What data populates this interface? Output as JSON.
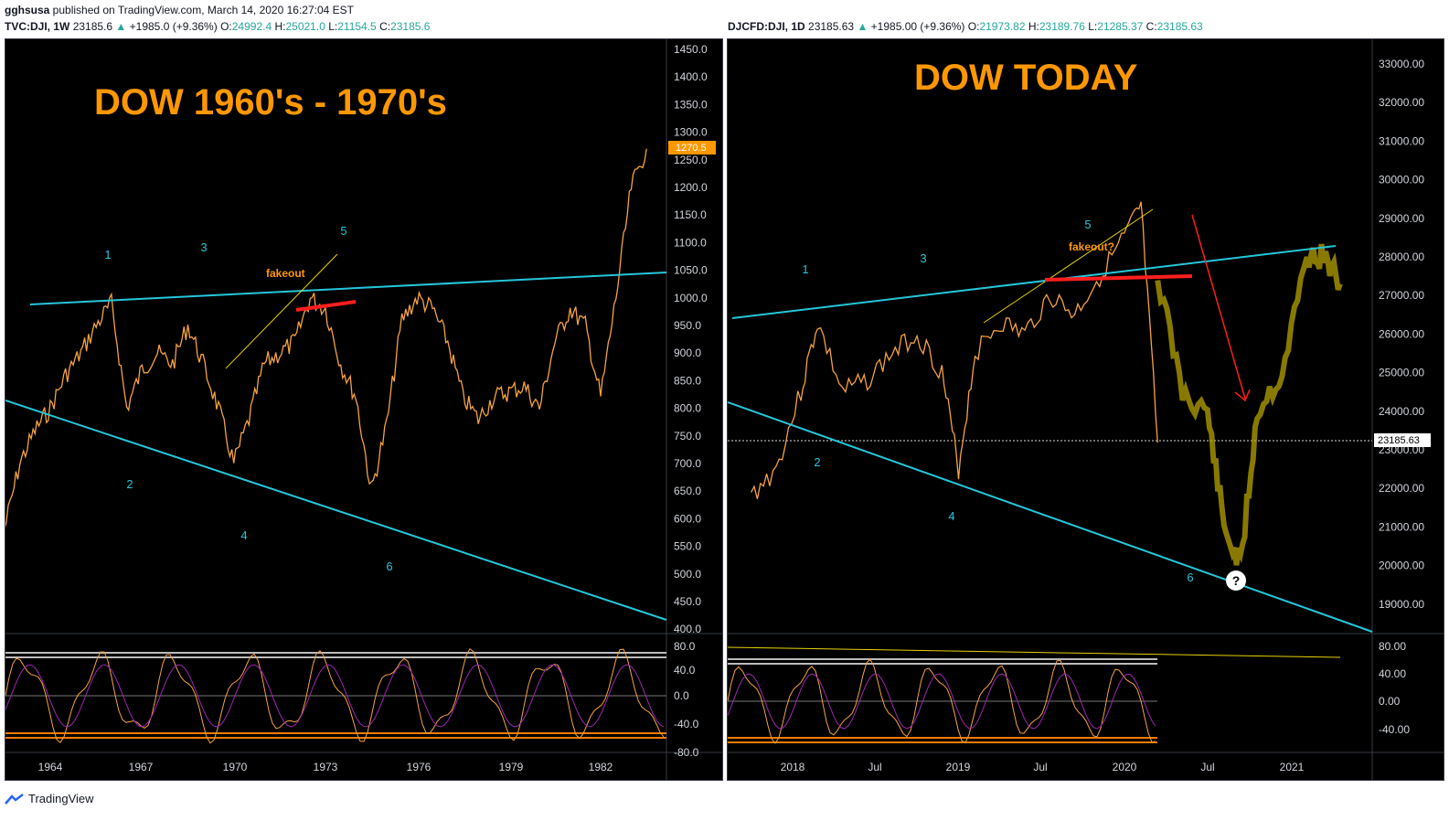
{
  "header": {
    "published_line": {
      "user": "gghsusa",
      "rest": " published on TradingView.com, March 14, 2020 16:27:04 EST"
    },
    "left_quote": {
      "symbol": "TVC:DJI, 1W",
      "price": "23185.6",
      "arrow": "▲",
      "change": "+1985.0 (+9.36%)",
      "o_label": "O:",
      "o": "24992.4",
      "h_label": "H:",
      "h": "25021.0",
      "l_label": "L:",
      "l": "21154.5",
      "c_label": "C:",
      "c": "23185.6"
    },
    "right_quote": {
      "symbol": "DJCFD:DJI, 1D",
      "price": "23185.63",
      "arrow": "▲",
      "change": "+1985.00 (+9.36%)",
      "o_label": "O:",
      "o": "21973.82",
      "h_label": "H:",
      "h": "23189.76",
      "l_label": "L:",
      "l": "21285.37",
      "c_label": "C:",
      "c": "23185.63"
    }
  },
  "colors": {
    "bg": "#000000",
    "price": "#f5a340",
    "trend": "#26c6da",
    "accent": "#ff9800",
    "red": "#ff1e1e",
    "projection": "#b5a300",
    "text_axis": "#d1d4dc",
    "wave": "#26c6da"
  },
  "chart_data": [
    {
      "type": "line",
      "title": "DOW 1960's - 1970's",
      "y_axis_ticks": [
        "1450.0",
        "1400.0",
        "1350.0",
        "1300.0",
        "1250.0",
        "1200.0",
        "1150.0",
        "1100.0",
        "1050.0",
        "1000.0",
        "950.0",
        "900.0",
        "850.0",
        "800.0",
        "750.0",
        "700.0",
        "650.0",
        "600.0",
        "550.0",
        "500.0",
        "450.0",
        "400.0"
      ],
      "ylim": [
        400,
        1450
      ],
      "x_axis_ticks": [
        "1964",
        "1967",
        "1970",
        "1973",
        "1976",
        "1979",
        "1982"
      ],
      "last_price_label": "1270.5",
      "oscillator_ticks": [
        "80.0",
        "40.0",
        "0.0",
        "-40.0",
        "-80.0"
      ],
      "wave_labels": [
        "1",
        "2",
        "3",
        "4",
        "5",
        "6"
      ],
      "annotation": "fakeout",
      "series": [
        {
          "x": [
            1962.5,
            1963,
            1963.5,
            1964,
            1964.5,
            1965,
            1965.5,
            1966,
            1966.5,
            1967,
            1967.5,
            1968,
            1968.5,
            1969,
            1969.5,
            1970,
            1970.5,
            1971,
            1971.5,
            1972,
            1972.5,
            1973,
            1973.5,
            1974,
            1974.5,
            1975,
            1975.5,
            1976,
            1976.5,
            1977,
            1977.5,
            1978,
            1978.5,
            1979,
            1979.5,
            1980,
            1980.5,
            1981,
            1981.5,
            1982,
            1982.5,
            1983,
            1983.5
          ],
          "values": [
            580,
            700,
            760,
            800,
            860,
            900,
            950,
            990,
            800,
            870,
            900,
            880,
            950,
            880,
            800,
            700,
            780,
            880,
            900,
            920,
            1000,
            980,
            880,
            820,
            650,
            770,
            960,
            1000,
            980,
            920,
            820,
            780,
            820,
            830,
            840,
            800,
            920,
            980,
            950,
            820,
            1000,
            1200,
            1270
          ]
        }
      ]
    },
    {
      "type": "line",
      "title": "DOW TODAY",
      "y_axis_ticks": [
        "33000.00",
        "32000.00",
        "31000.00",
        "30000.00",
        "29000.00",
        "28000.00",
        "27000.00",
        "26000.00",
        "25000.00",
        "24000.00",
        "23000.00",
        "22000.00",
        "21000.00",
        "20000.00",
        "19000.00"
      ],
      "ylim": [
        18000,
        33500
      ],
      "x_axis_ticks": [
        "2018",
        "Jul",
        "2019",
        "Jul",
        "2020",
        "Jul",
        "2021"
      ],
      "last_price_label": "23185.63",
      "oscillator_ticks": [
        "80.00",
        "40.00",
        "0.00",
        "-40.00"
      ],
      "wave_labels": [
        "1",
        "2",
        "3",
        "4",
        "5",
        "6"
      ],
      "annotation": "fakeout?",
      "question_mark": "?",
      "series": [
        {
          "x": [
            2017.75,
            2017.9,
            2018.05,
            2018.15,
            2018.3,
            2018.45,
            2018.6,
            2018.75,
            2018.9,
            2019.0,
            2019.1,
            2019.25,
            2019.4,
            2019.55,
            2019.7,
            2019.85,
            2020.0,
            2020.1,
            2020.2
          ],
          "values": [
            21800,
            22500,
            24500,
            26300,
            24500,
            24800,
            25500,
            26000,
            25000,
            22500,
            25500,
            26300,
            26000,
            27000,
            26500,
            27500,
            28500,
            29300,
            23185
          ]
        },
        {
          "x": [
            2020.2,
            2020.35,
            2020.5,
            2020.6,
            2020.7,
            2020.8,
            2020.95,
            2021.1,
            2021.2,
            2021.3
          ],
          "values": [
            27500,
            24500,
            24000,
            21000,
            20000,
            24000,
            25000,
            28000,
            28000,
            27300
          ]
        }
      ]
    }
  ],
  "footer": {
    "brand": "TradingView"
  }
}
